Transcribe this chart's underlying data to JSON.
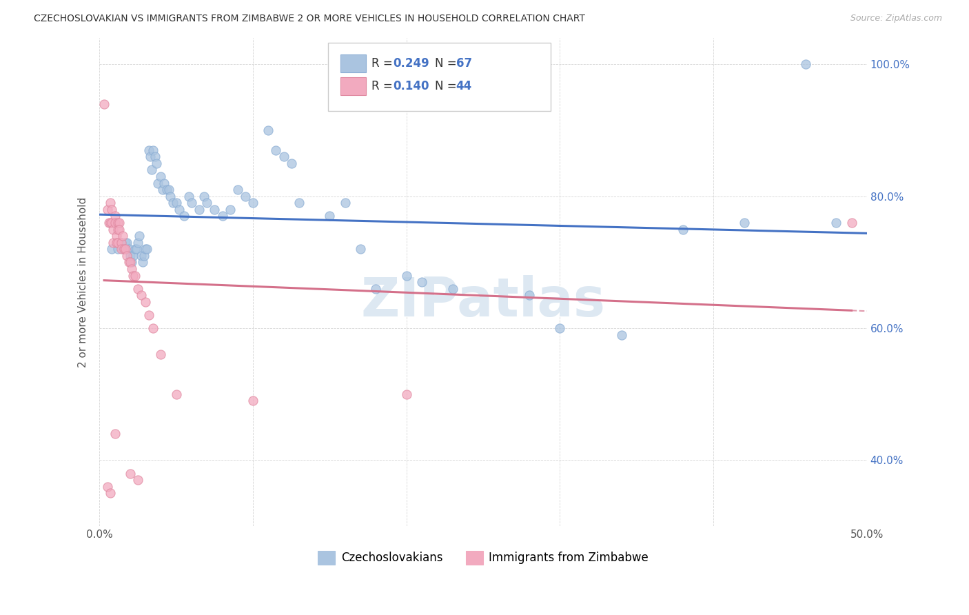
{
  "title": "CZECHOSLOVAKIAN VS IMMIGRANTS FROM ZIMBABWE 2 OR MORE VEHICLES IN HOUSEHOLD CORRELATION CHART",
  "source": "Source: ZipAtlas.com",
  "ylabel": "2 or more Vehicles in Household",
  "xlim": [
    0.0,
    0.5
  ],
  "ylim": [
    0.3,
    1.04
  ],
  "xticks": [
    0.0,
    0.1,
    0.2,
    0.3,
    0.4,
    0.5
  ],
  "xticklabels": [
    "0.0%",
    "",
    "",
    "",
    "",
    "50.0%"
  ],
  "yticks": [
    0.4,
    0.6,
    0.8,
    1.0
  ],
  "yticklabels": [
    "40.0%",
    "60.0%",
    "80.0%",
    "100.0%"
  ],
  "blue_color": "#aac4e0",
  "pink_color": "#f2aabf",
  "blue_line_color": "#4472c4",
  "pink_line_color": "#d4708a",
  "watermark": "ZIPatlas",
  "blue_scatter": [
    [
      0.008,
      0.72
    ],
    [
      0.012,
      0.72
    ],
    [
      0.014,
      0.73
    ],
    [
      0.015,
      0.72
    ],
    [
      0.016,
      0.72
    ],
    [
      0.017,
      0.73
    ],
    [
      0.018,
      0.73
    ],
    [
      0.019,
      0.72
    ],
    [
      0.02,
      0.71
    ],
    [
      0.021,
      0.7
    ],
    [
      0.022,
      0.71
    ],
    [
      0.023,
      0.72
    ],
    [
      0.024,
      0.72
    ],
    [
      0.025,
      0.73
    ],
    [
      0.026,
      0.74
    ],
    [
      0.027,
      0.71
    ],
    [
      0.028,
      0.7
    ],
    [
      0.029,
      0.71
    ],
    [
      0.03,
      0.72
    ],
    [
      0.031,
      0.72
    ],
    [
      0.032,
      0.87
    ],
    [
      0.033,
      0.86
    ],
    [
      0.034,
      0.84
    ],
    [
      0.035,
      0.87
    ],
    [
      0.036,
      0.86
    ],
    [
      0.037,
      0.85
    ],
    [
      0.038,
      0.82
    ],
    [
      0.04,
      0.83
    ],
    [
      0.041,
      0.81
    ],
    [
      0.042,
      0.82
    ],
    [
      0.044,
      0.81
    ],
    [
      0.045,
      0.81
    ],
    [
      0.046,
      0.8
    ],
    [
      0.048,
      0.79
    ],
    [
      0.05,
      0.79
    ],
    [
      0.052,
      0.78
    ],
    [
      0.055,
      0.77
    ],
    [
      0.058,
      0.8
    ],
    [
      0.06,
      0.79
    ],
    [
      0.065,
      0.78
    ],
    [
      0.068,
      0.8
    ],
    [
      0.07,
      0.79
    ],
    [
      0.075,
      0.78
    ],
    [
      0.08,
      0.77
    ],
    [
      0.085,
      0.78
    ],
    [
      0.09,
      0.81
    ],
    [
      0.095,
      0.8
    ],
    [
      0.1,
      0.79
    ],
    [
      0.11,
      0.9
    ],
    [
      0.115,
      0.87
    ],
    [
      0.12,
      0.86
    ],
    [
      0.125,
      0.85
    ],
    [
      0.13,
      0.79
    ],
    [
      0.15,
      0.77
    ],
    [
      0.16,
      0.79
    ],
    [
      0.17,
      0.72
    ],
    [
      0.18,
      0.66
    ],
    [
      0.2,
      0.68
    ],
    [
      0.21,
      0.67
    ],
    [
      0.23,
      0.66
    ],
    [
      0.28,
      0.65
    ],
    [
      0.3,
      0.6
    ],
    [
      0.34,
      0.59
    ],
    [
      0.38,
      0.75
    ],
    [
      0.42,
      0.76
    ],
    [
      0.46,
      1.0
    ],
    [
      0.48,
      0.76
    ]
  ],
  "pink_scatter": [
    [
      0.003,
      0.94
    ],
    [
      0.005,
      0.78
    ],
    [
      0.006,
      0.76
    ],
    [
      0.007,
      0.79
    ],
    [
      0.007,
      0.76
    ],
    [
      0.008,
      0.78
    ],
    [
      0.008,
      0.76
    ],
    [
      0.009,
      0.75
    ],
    [
      0.009,
      0.73
    ],
    [
      0.01,
      0.77
    ],
    [
      0.01,
      0.76
    ],
    [
      0.011,
      0.74
    ],
    [
      0.011,
      0.73
    ],
    [
      0.012,
      0.76
    ],
    [
      0.012,
      0.75
    ],
    [
      0.012,
      0.73
    ],
    [
      0.013,
      0.76
    ],
    [
      0.013,
      0.75
    ],
    [
      0.014,
      0.73
    ],
    [
      0.014,
      0.72
    ],
    [
      0.015,
      0.74
    ],
    [
      0.016,
      0.72
    ],
    [
      0.017,
      0.72
    ],
    [
      0.018,
      0.71
    ],
    [
      0.019,
      0.7
    ],
    [
      0.02,
      0.7
    ],
    [
      0.021,
      0.69
    ],
    [
      0.022,
      0.68
    ],
    [
      0.023,
      0.68
    ],
    [
      0.025,
      0.66
    ],
    [
      0.027,
      0.65
    ],
    [
      0.03,
      0.64
    ],
    [
      0.032,
      0.62
    ],
    [
      0.035,
      0.6
    ],
    [
      0.04,
      0.56
    ],
    [
      0.05,
      0.5
    ],
    [
      0.005,
      0.36
    ],
    [
      0.007,
      0.35
    ],
    [
      0.01,
      0.44
    ],
    [
      0.02,
      0.38
    ],
    [
      0.025,
      0.37
    ],
    [
      0.1,
      0.49
    ],
    [
      0.2,
      0.5
    ],
    [
      0.49,
      0.76
    ]
  ]
}
